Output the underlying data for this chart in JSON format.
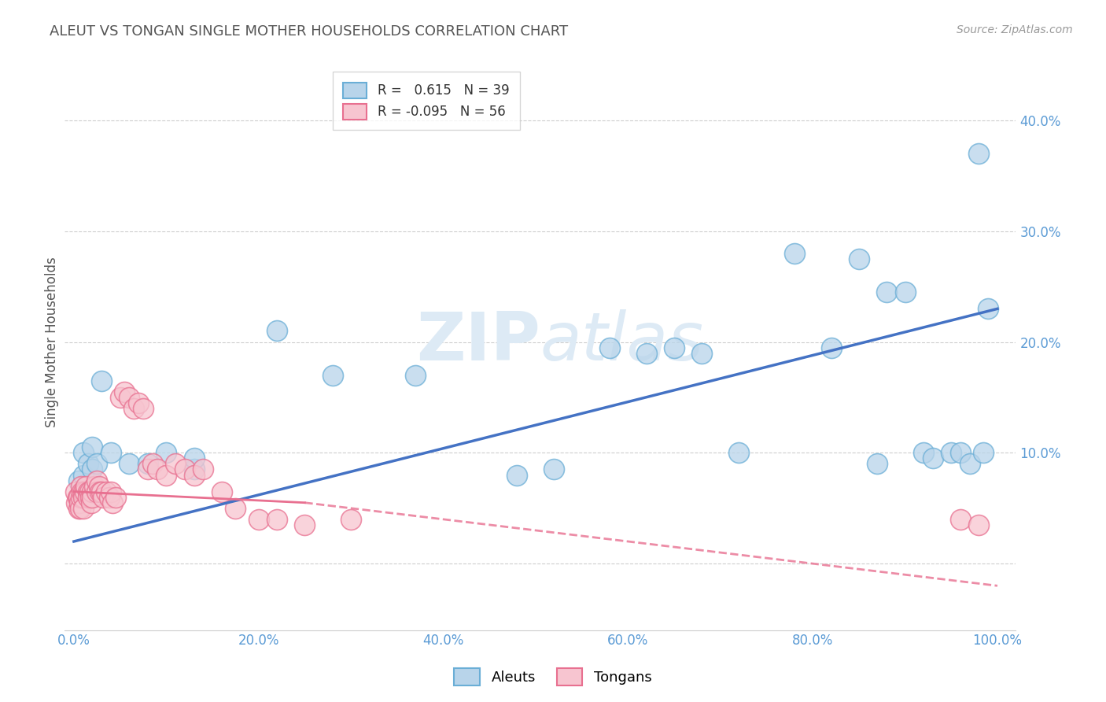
{
  "title": "ALEUT VS TONGAN SINGLE MOTHER HOUSEHOLDS CORRELATION CHART",
  "source_text": "Source: ZipAtlas.com",
  "ylabel": "Single Mother Households",
  "xlim": [
    -0.01,
    1.02
  ],
  "ylim": [
    -0.06,
    0.46
  ],
  "xticks": [
    0.0,
    0.2,
    0.4,
    0.6,
    0.8,
    1.0
  ],
  "yticks": [
    0.0,
    0.1,
    0.2,
    0.3,
    0.4
  ],
  "xticklabels": [
    "0.0%",
    "20.0%",
    "40.0%",
    "60.0%",
    "80.0%",
    "100.0%"
  ],
  "right_yticklabels": [
    "",
    "10.0%",
    "20.0%",
    "30.0%",
    "40.0%"
  ],
  "aleuts_r": 0.615,
  "aleuts_n": 39,
  "tongans_r": -0.095,
  "tongans_n": 56,
  "aleut_face_color": "#b8d4ea",
  "aleut_edge_color": "#6aaed6",
  "tongan_face_color": "#f7c5d0",
  "tongan_edge_color": "#e87090",
  "aleut_line_color": "#4472c4",
  "tongan_line_color": "#e87090",
  "watermark_color": "#ddeaf5",
  "background_color": "#ffffff",
  "grid_color": "#c8c8c8",
  "aleut_x": [
    0.005,
    0.008,
    0.01,
    0.01,
    0.015,
    0.02,
    0.02,
    0.025,
    0.03,
    0.04,
    0.06,
    0.08,
    0.1,
    0.13,
    0.13,
    0.22,
    0.28,
    0.37,
    0.48,
    0.52,
    0.58,
    0.62,
    0.65,
    0.68,
    0.72,
    0.78,
    0.82,
    0.85,
    0.87,
    0.88,
    0.9,
    0.92,
    0.93,
    0.95,
    0.96,
    0.97,
    0.98,
    0.985,
    0.99
  ],
  "aleut_y": [
    0.075,
    0.065,
    0.08,
    0.1,
    0.09,
    0.105,
    0.085,
    0.09,
    0.165,
    0.1,
    0.09,
    0.09,
    0.1,
    0.085,
    0.095,
    0.21,
    0.17,
    0.17,
    0.08,
    0.085,
    0.195,
    0.19,
    0.195,
    0.19,
    0.1,
    0.28,
    0.195,
    0.275,
    0.09,
    0.245,
    0.245,
    0.1,
    0.095,
    0.1,
    0.1,
    0.09,
    0.37,
    0.1,
    0.23
  ],
  "tongan_x": [
    0.002,
    0.003,
    0.004,
    0.005,
    0.005,
    0.006,
    0.007,
    0.008,
    0.008,
    0.009,
    0.01,
    0.01,
    0.01,
    0.012,
    0.013,
    0.015,
    0.015,
    0.017,
    0.018,
    0.019,
    0.02,
    0.02,
    0.022,
    0.025,
    0.025,
    0.027,
    0.028,
    0.03,
    0.032,
    0.035,
    0.038,
    0.04,
    0.042,
    0.045,
    0.05,
    0.055,
    0.06,
    0.065,
    0.07,
    0.075,
    0.08,
    0.085,
    0.09,
    0.1,
    0.11,
    0.12,
    0.13,
    0.14,
    0.16,
    0.175,
    0.2,
    0.22,
    0.25,
    0.3,
    0.96,
    0.98
  ],
  "tongan_y": [
    0.065,
    0.055,
    0.06,
    0.06,
    0.05,
    0.055,
    0.05,
    0.07,
    0.06,
    0.065,
    0.065,
    0.06,
    0.05,
    0.065,
    0.07,
    0.065,
    0.06,
    0.065,
    0.06,
    0.055,
    0.065,
    0.06,
    0.07,
    0.075,
    0.065,
    0.07,
    0.065,
    0.065,
    0.06,
    0.065,
    0.06,
    0.065,
    0.055,
    0.06,
    0.15,
    0.155,
    0.15,
    0.14,
    0.145,
    0.14,
    0.085,
    0.09,
    0.085,
    0.08,
    0.09,
    0.085,
    0.08,
    0.085,
    0.065,
    0.05,
    0.04,
    0.04,
    0.035,
    0.04,
    0.04,
    0.035
  ]
}
